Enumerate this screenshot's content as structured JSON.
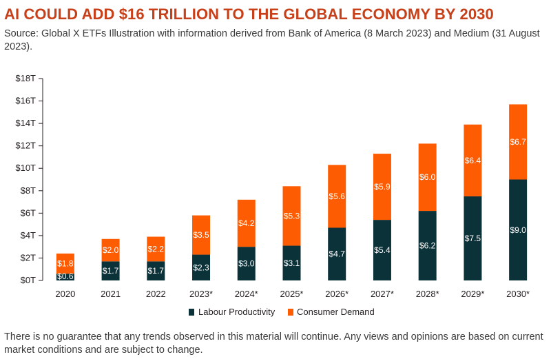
{
  "header": {
    "title": "AI COULD ADD $16 TRILLION TO THE GLOBAL ECONOMY BY 2030",
    "source": "Source: Global X ETFs Illustration with information derived from Bank of America (8 March 2023) and Medium (31 August 2023)."
  },
  "footer": {
    "disclaimer": "There is no guarantee that any trends observed in this material will continue. Any views and opinions are based on current market conditions and are subject to change."
  },
  "colors": {
    "labour": "#0c3239",
    "consumer": "#fe5c02",
    "title": "#c8401a"
  },
  "chart_data": {
    "type": "bar",
    "stacked": true,
    "title": "AI COULD ADD $16 TRILLION TO THE GLOBAL ECONOMY BY 2030",
    "categories": [
      "2020",
      "2021",
      "2022",
      "2023*",
      "2024*",
      "2025*",
      "2026*",
      "2027*",
      "2028*",
      "2029*",
      "2030*"
    ],
    "series": [
      {
        "name": "Labour Productivity",
        "values": [
          0.6,
          1.7,
          1.7,
          2.3,
          3.0,
          3.1,
          4.7,
          5.4,
          6.2,
          7.5,
          9.0
        ],
        "labels": [
          "$0.6",
          "$1.7",
          "$1.7",
          "$2.3",
          "$3.0",
          "$3.1",
          "$4.7",
          "$5.4",
          "$6.2",
          "$7.5",
          "$9.0"
        ]
      },
      {
        "name": "Consumer Demand",
        "values": [
          1.8,
          2.0,
          2.2,
          3.5,
          4.2,
          5.3,
          5.6,
          5.9,
          6.0,
          6.4,
          6.7
        ],
        "labels": [
          "$1.8",
          "$2.0",
          "$2.2",
          "$3.5",
          "$4.2",
          "$5.3",
          "$5.6",
          "$5.9",
          "$6.0",
          "$6.4",
          "$6.7"
        ]
      }
    ],
    "ylim": [
      0,
      18
    ],
    "yticks": [
      0,
      2,
      4,
      6,
      8,
      10,
      12,
      14,
      16,
      18
    ],
    "ytick_labels": [
      "$0T",
      "$2T",
      "$4T",
      "$6T",
      "$8T",
      "$10T",
      "$12T",
      "$14T",
      "$16T",
      "$18T"
    ],
    "xlabel": "",
    "ylabel": "",
    "grid": false,
    "legend_position": "bottom"
  }
}
